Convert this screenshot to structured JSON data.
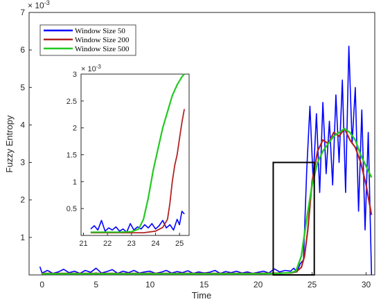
{
  "chart_data": [
    {
      "type": "line",
      "xlabel": "Time",
      "ylabel": "Fuzzy Entropy",
      "y_exponent_label": "× 10",
      "y_exponent_power": "-3",
      "xlim": [
        -1.2,
        30.8
      ],
      "ylim": [
        0,
        7
      ],
      "xticks": [
        0,
        5,
        10,
        15,
        20,
        25,
        30
      ],
      "yticks": [
        1,
        2,
        3,
        4,
        5,
        6,
        7
      ],
      "legend_position": "top-left",
      "grid": false,
      "zoom_box": {
        "x": [
          21.4,
          25.2
        ],
        "y": [
          0,
          3
        ]
      },
      "series": [
        {
          "name": "Window Size 50",
          "color": "#0000ff",
          "x": [
            -0.2,
            0,
            0.5,
            1,
            1.5,
            2,
            2.5,
            3,
            3.5,
            4,
            4.5,
            5,
            5.5,
            6,
            6.5,
            7,
            7.5,
            8,
            8.5,
            9,
            9.5,
            10,
            10.5,
            11,
            11.5,
            12,
            12.5,
            13,
            13.5,
            14,
            14.5,
            15,
            15.5,
            16,
            16.5,
            17,
            17.5,
            18,
            18.5,
            19,
            19.5,
            20,
            20.5,
            21,
            21.5,
            22,
            22.5,
            23,
            23.3,
            23.6,
            23.9,
            24.2,
            24.5,
            24.8,
            25.1,
            25.4,
            25.7,
            26,
            26.3,
            26.6,
            26.9,
            27.2,
            27.5,
            27.8,
            28.1,
            28.4,
            28.7,
            29,
            29.3,
            29.6,
            29.9,
            30.2,
            30.5
          ],
          "y": [
            0.22,
            0.05,
            0.12,
            0.04,
            0.08,
            0.15,
            0.06,
            0.1,
            0.04,
            0.12,
            0.07,
            0.18,
            0.05,
            0.09,
            0.14,
            0.04,
            0.1,
            0.06,
            0.12,
            0.05,
            0.08,
            0.1,
            0.04,
            0.07,
            0.12,
            0.05,
            0.09,
            0.06,
            0.11,
            0.04,
            0.08,
            0.05,
            0.07,
            0.12,
            0.04,
            0.09,
            0.06,
            0.1,
            0.05,
            0.08,
            0.04,
            0.07,
            0.1,
            0.05,
            0.16,
            0.08,
            0.12,
            0.1,
            0.18,
            0.08,
            0.3,
            0.4,
            2.8,
            4.5,
            2.5,
            4.3,
            2.2,
            4.6,
            2.7,
            4.1,
            2.4,
            4.8,
            3.0,
            5.2,
            2.2,
            6.1,
            3.5,
            5.0,
            1.7,
            4.4,
            1.2,
            3.8,
            0.0
          ]
        },
        {
          "name": "Window Size 200",
          "color": "#b22222",
          "x": [
            0,
            5,
            10,
            15,
            20,
            22,
            23,
            23.5,
            24,
            24.3,
            24.6,
            25,
            25.5,
            26,
            26.5,
            27,
            27.5,
            28,
            28.5,
            29,
            29.5,
            30,
            30.5
          ],
          "y": [
            0.04,
            0.04,
            0.04,
            0.04,
            0.04,
            0.05,
            0.05,
            0.08,
            0.2,
            0.5,
            1.2,
            2.5,
            3.3,
            3.6,
            3.5,
            3.8,
            3.7,
            3.9,
            3.6,
            3.4,
            3.0,
            2.4,
            1.6
          ]
        },
        {
          "name": "Window Size 500",
          "color": "#22c922",
          "x": [
            0,
            5,
            10,
            15,
            20,
            22,
            23,
            23.5,
            24,
            24.5,
            25,
            25.5,
            26,
            26.5,
            27,
            27.5,
            28,
            28.5,
            29,
            29.5,
            30,
            30.5
          ],
          "y": [
            0.03,
            0.03,
            0.03,
            0.03,
            0.03,
            0.04,
            0.06,
            0.1,
            0.5,
            1.5,
            2.4,
            3.0,
            3.3,
            3.5,
            3.7,
            3.8,
            3.9,
            3.8,
            3.6,
            3.2,
            2.9,
            2.6
          ]
        }
      ]
    },
    {
      "type": "line",
      "role": "inset",
      "xlim": [
        20.9,
        25.4
      ],
      "ylim": [
        0,
        3
      ],
      "xticks": [
        21,
        22,
        23,
        24,
        25
      ],
      "yticks": [
        0.5,
        1,
        1.5,
        2,
        2.5,
        3
      ],
      "y_exponent_label": "× 10",
      "y_exponent_power": "-3",
      "series": [
        {
          "name": "Window Size 50",
          "color": "#0000ff",
          "x": [
            21.3,
            21.45,
            21.6,
            21.75,
            21.9,
            22.05,
            22.2,
            22.35,
            22.5,
            22.65,
            22.8,
            22.95,
            23.1,
            23.25,
            23.4,
            23.55,
            23.7,
            23.85,
            24.0,
            24.15,
            24.3,
            24.45,
            24.6,
            24.75,
            24.9,
            25.0,
            25.1,
            25.2
          ],
          "y": [
            0.12,
            0.18,
            0.1,
            0.28,
            0.08,
            0.14,
            0.1,
            0.16,
            0.08,
            0.12,
            0.06,
            0.22,
            0.1,
            0.16,
            0.12,
            0.2,
            0.14,
            0.22,
            0.12,
            0.18,
            0.28,
            0.14,
            0.2,
            0.1,
            0.3,
            0.2,
            0.45,
            0.4
          ]
        },
        {
          "name": "Window Size 200",
          "color": "#b22222",
          "x": [
            21.3,
            22,
            22.5,
            23,
            23.5,
            24,
            24.3,
            24.5,
            24.6,
            24.7,
            24.8,
            24.9,
            25.0,
            25.1,
            25.2
          ],
          "y": [
            0.05,
            0.05,
            0.05,
            0.05,
            0.05,
            0.08,
            0.15,
            0.3,
            0.6,
            1.0,
            1.3,
            1.5,
            1.8,
            2.1,
            2.35
          ]
        },
        {
          "name": "Window Size 500",
          "color": "#22c922",
          "x": [
            21.3,
            22,
            22.5,
            23,
            23.3,
            23.5,
            23.7,
            23.9,
            24.1,
            24.3,
            24.5,
            24.7,
            24.9,
            25.1,
            25.2
          ],
          "y": [
            0.06,
            0.06,
            0.06,
            0.07,
            0.12,
            0.3,
            0.7,
            1.2,
            1.6,
            2.0,
            2.3,
            2.6,
            2.8,
            2.95,
            3.0
          ]
        }
      ]
    }
  ]
}
